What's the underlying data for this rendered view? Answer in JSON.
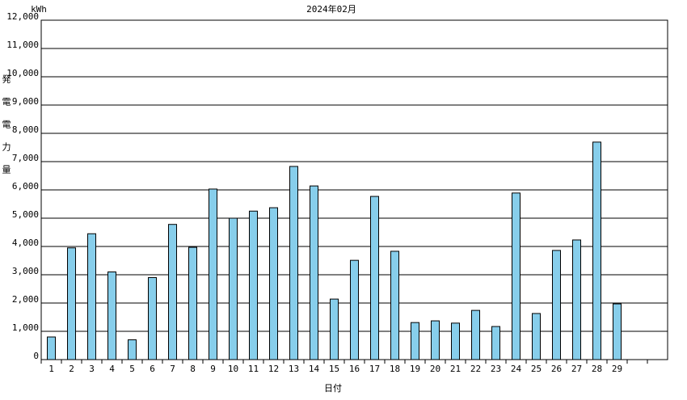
{
  "chart_data": {
    "type": "bar",
    "title": "2024年02月",
    "unit": "kWh",
    "y_label": "発電電力量",
    "x_label": "日付",
    "categories": [
      "1",
      "2",
      "3",
      "4",
      "5",
      "6",
      "7",
      "8",
      "9",
      "10",
      "11",
      "12",
      "13",
      "14",
      "15",
      "16",
      "17",
      "18",
      "19",
      "20",
      "21",
      "22",
      "23",
      "24",
      "25",
      "26",
      "27",
      "28",
      "29",
      null,
      null
    ],
    "values": [
      800,
      3950,
      4450,
      3100,
      700,
      2900,
      4780,
      3970,
      6030,
      5000,
      5250,
      5370,
      6830,
      6140,
      2140,
      3510,
      5770,
      3830,
      1310,
      1370,
      1290,
      1740,
      1170,
      5890,
      1630,
      3860,
      4230,
      7690,
      1970,
      null,
      null
    ],
    "color": "#87ceeb",
    "ylim": [
      0,
      12000
    ],
    "yticks": [
      0,
      {
        "value": 1000,
        "label": "1,000"
      },
      {
        "value": 2000,
        "label": "2,000"
      },
      {
        "value": 3000,
        "label": "3,000"
      },
      {
        "value": 4000,
        "label": "4,000"
      },
      {
        "value": 5000,
        "label": "5,000"
      },
      {
        "value": 6000,
        "label": "6,000"
      },
      {
        "value": 7000,
        "label": "7,000"
      },
      {
        "value": 8000,
        "label": "8,000"
      },
      {
        "value": 9000,
        "label": "9,000"
      },
      {
        "value": 10000,
        "label": "10,000"
      },
      {
        "value": 11000,
        "label": "11,000"
      },
      {
        "value": 12000,
        "label": "12,000"
      }
    ],
    "grid": true
  }
}
